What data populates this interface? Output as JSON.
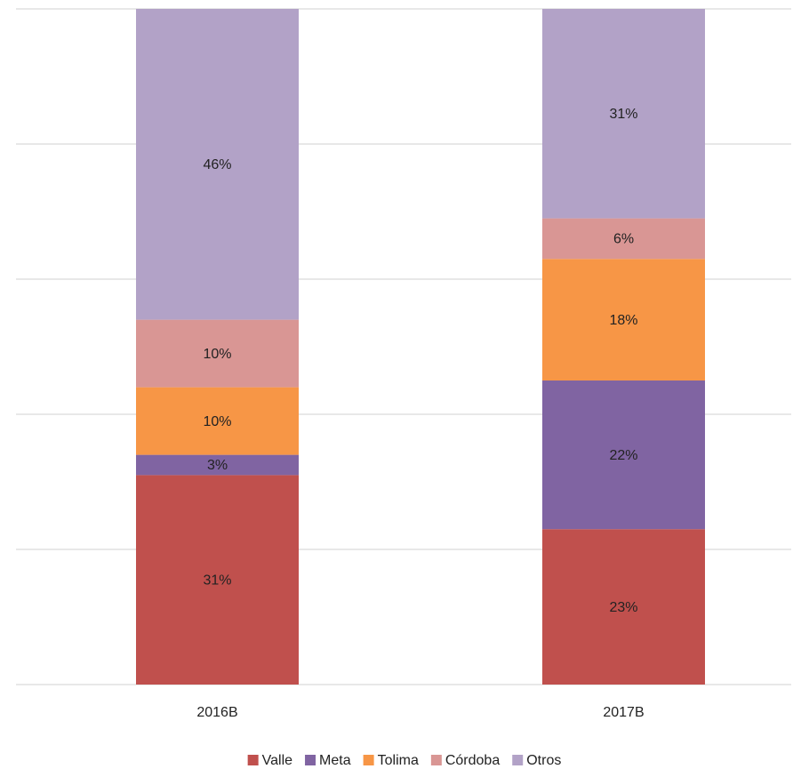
{
  "chart_data": {
    "type": "stacked_bar",
    "categories": [
      "2016B",
      "2017B"
    ],
    "series": [
      {
        "name": "Valle",
        "color": "#c0504d",
        "values": [
          31,
          23
        ],
        "value_labels": [
          "31%",
          "23%"
        ]
      },
      {
        "name": "Meta",
        "color": "#8064a2",
        "values": [
          3,
          22
        ],
        "value_labels": [
          "3%",
          "22%"
        ]
      },
      {
        "name": "Tolima",
        "color": "#f79646",
        "values": [
          10,
          18
        ],
        "value_labels": [
          "10%",
          "18%"
        ]
      },
      {
        "name": "Córdoba",
        "color": "#d99694",
        "values": [
          10,
          6
        ],
        "value_labels": [
          "10%",
          "6%"
        ]
      },
      {
        "name": "Otros",
        "color": "#b2a2c7",
        "values": [
          46,
          31
        ],
        "value_labels": [
          "46%",
          "31%"
        ]
      }
    ],
    "ylim": [
      0,
      100
    ],
    "yticks": [
      0,
      20,
      40,
      60,
      80,
      100
    ],
    "grid": true,
    "legend": "bottom"
  }
}
